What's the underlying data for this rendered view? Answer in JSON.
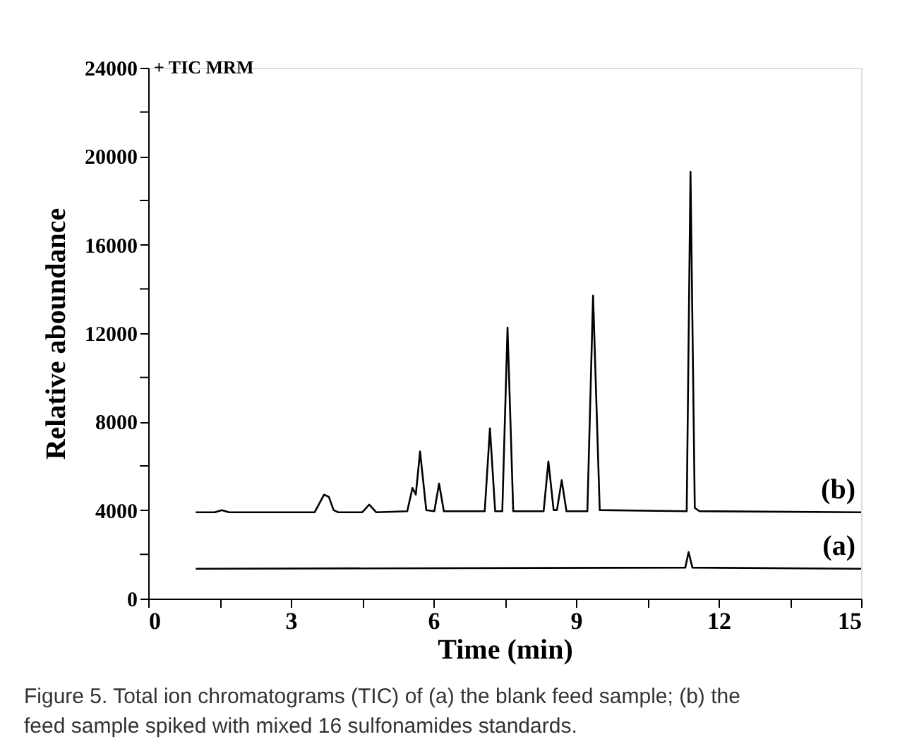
{
  "chart_data": {
    "type": "line",
    "xlabel": "Time (min)",
    "ylabel": "Relative aboundance",
    "annotations": [
      "+ TIC MRM",
      "Figure 5. Total ion chromatograms (TIC) of (a) the blank feed sample; (b) the feed sample spiked with mixed 16 sulfonamides standards."
    ],
    "series": [
      {
        "name": "(b)",
        "color": "#000000",
        "x": [
          1.0,
          1.4,
          1.55,
          1.7,
          3.5,
          3.6,
          3.7,
          3.8,
          3.9,
          4.0,
          4.5,
          4.65,
          4.8,
          5.45,
          5.56,
          5.63,
          5.72,
          5.85,
          6.02,
          6.12,
          6.22,
          7.08,
          7.19,
          7.3,
          7.45,
          7.56,
          7.68,
          8.32,
          8.42,
          8.53,
          8.6,
          8.7,
          8.8,
          9.24,
          9.36,
          9.5,
          11.33,
          11.41,
          11.5,
          11.6,
          15.0
        ],
        "values": [
          3900,
          3900,
          4000,
          3900,
          3900,
          4300,
          4700,
          4600,
          4000,
          3900,
          3900,
          4250,
          3900,
          3950,
          5000,
          4700,
          6650,
          4000,
          3950,
          5200,
          3950,
          3950,
          7700,
          3950,
          3950,
          12250,
          3950,
          3950,
          6200,
          4000,
          4000,
          5350,
          3950,
          3950,
          13700,
          4000,
          3950,
          19300,
          4100,
          3950,
          3900
        ]
      },
      {
        "name": "(a)",
        "color": "#000000",
        "x": [
          1.0,
          11.3,
          11.37,
          11.45,
          15.0
        ],
        "values": [
          1350,
          1400,
          2100,
          1400,
          1350
        ]
      }
    ],
    "xlim": [
      0,
      15
    ],
    "xticks": [
      0,
      {
        "value": 1.5,
        "label": null
      },
      3,
      {
        "value": 4.5,
        "label": null
      },
      6,
      {
        "value": 7.5,
        "label": null
      },
      9,
      {
        "value": 10.5,
        "label": null
      },
      12,
      {
        "value": 13.5,
        "label": null
      },
      15
    ],
    "ylim": [
      0,
      24000
    ],
    "yticks": [
      0,
      {
        "value": 2000,
        "label": null
      },
      4000,
      {
        "value": 6000,
        "label": null
      },
      8000,
      {
        "value": 10000,
        "label": null
      },
      12000,
      {
        "value": 14000,
        "label": null
      },
      16000,
      {
        "value": 18000,
        "label": null
      },
      20000,
      {
        "value": 22000,
        "label": null
      },
      24000
    ],
    "grid": false,
    "line_style": "solid",
    "marker": "none"
  }
}
